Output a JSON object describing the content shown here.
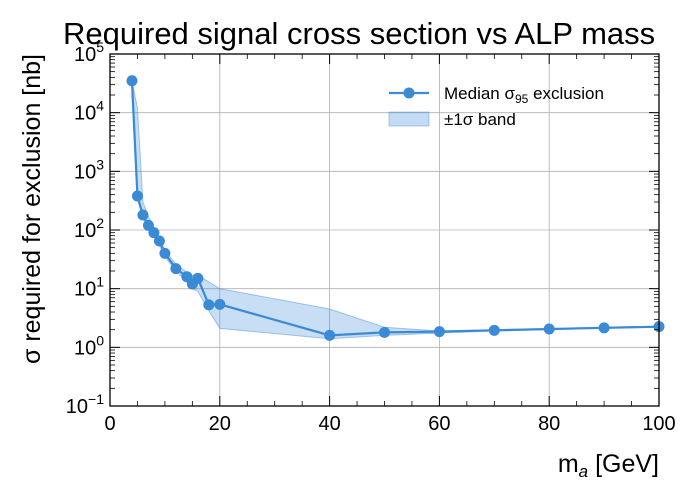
{
  "chart_data": {
    "type": "line",
    "title": "Required signal cross section vs ALP mass",
    "xlabel_main": "m",
    "xlabel_sub": "a",
    "xlabel_unit": " [GeV]",
    "ylabel": "σ required for exclusion [nb]",
    "xlim": [
      0,
      100
    ],
    "ylim": [
      0.1,
      100000
    ],
    "yscale": "log",
    "grid": true,
    "x_ticks": [
      {
        "value": 0,
        "label": "0"
      },
      {
        "value": 20,
        "label": "20"
      },
      {
        "value": 40,
        "label": "40"
      },
      {
        "value": 60,
        "label": "60"
      },
      {
        "value": 80,
        "label": "80"
      },
      {
        "value": 100,
        "label": "100"
      }
    ],
    "y_ticks": [
      {
        "value": 0.1,
        "base": "10",
        "exp": "−1"
      },
      {
        "value": 1,
        "base": "10",
        "exp": "0"
      },
      {
        "value": 10,
        "base": "10",
        "exp": "1"
      },
      {
        "value": 100,
        "base": "10",
        "exp": "2"
      },
      {
        "value": 1000,
        "base": "10",
        "exp": "3"
      },
      {
        "value": 10000,
        "base": "10",
        "exp": "4"
      },
      {
        "value": 100000,
        "base": "10",
        "exp": "5"
      }
    ],
    "legend_position": "top-right",
    "series": [
      {
        "name_main": "Median σ",
        "name_sub": "95",
        "name_rest": " exclusion",
        "color": "#3a8ad6",
        "x": [
          4,
          5,
          6,
          7,
          8,
          9,
          10,
          12,
          14,
          15,
          16,
          18,
          20,
          40,
          50,
          60,
          70,
          80,
          90,
          100
        ],
        "y": [
          35000,
          380,
          180,
          120,
          90,
          65,
          40,
          22,
          16,
          12,
          15,
          5.3,
          5.4,
          1.6,
          1.8,
          1.85,
          1.95,
          2.05,
          2.15,
          2.25
        ]
      }
    ],
    "band": {
      "name": "±1σ band",
      "color": "#3a8ad6",
      "x": [
        4,
        5,
        6,
        7,
        8,
        9,
        10,
        12,
        14,
        15,
        16,
        18,
        20,
        40,
        50,
        60,
        70,
        80,
        90,
        100
      ],
      "upper": [
        35000,
        12000,
        300,
        170,
        110,
        75,
        45,
        26,
        19,
        17,
        17,
        13,
        10,
        4.5,
        2.2,
        1.9,
        2.0,
        2.1,
        2.2,
        2.3
      ],
      "lower": [
        20000,
        330,
        160,
        105,
        80,
        55,
        35,
        20,
        13,
        10,
        9,
        4.2,
        2.1,
        1.4,
        1.6,
        1.75,
        1.9,
        2.0,
        2.1,
        2.2
      ]
    }
  }
}
